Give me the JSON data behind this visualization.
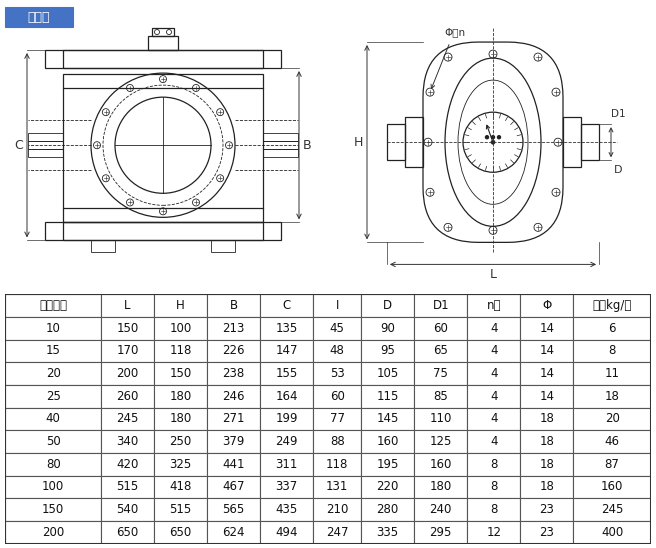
{
  "title": "铸铁型",
  "title_bg": "#4472c4",
  "title_color": "#ffffff",
  "headers": [
    "公称通径",
    "L",
    "H",
    "B",
    "C",
    "I",
    "D",
    "D1",
    "n个",
    "Φ",
    "重量kg/台"
  ],
  "rows": [
    [
      10,
      150,
      100,
      213,
      135,
      45,
      90,
      60,
      4,
      14,
      6
    ],
    [
      15,
      170,
      118,
      226,
      147,
      48,
      95,
      65,
      4,
      14,
      8
    ],
    [
      20,
      200,
      150,
      238,
      155,
      53,
      105,
      75,
      4,
      14,
      11
    ],
    [
      25,
      260,
      180,
      246,
      164,
      60,
      115,
      85,
      4,
      14,
      18
    ],
    [
      40,
      245,
      180,
      271,
      199,
      77,
      145,
      110,
      4,
      18,
      20
    ],
    [
      50,
      340,
      250,
      379,
      249,
      88,
      160,
      125,
      4,
      18,
      46
    ],
    [
      80,
      420,
      325,
      441,
      311,
      118,
      195,
      160,
      8,
      18,
      87
    ],
    [
      100,
      515,
      418,
      467,
      337,
      131,
      220,
      180,
      8,
      18,
      160
    ],
    [
      150,
      540,
      515,
      565,
      435,
      210,
      280,
      240,
      8,
      23,
      245
    ],
    [
      200,
      650,
      650,
      624,
      494,
      247,
      335,
      295,
      12,
      23,
      400
    ]
  ],
  "fig_width": 6.56,
  "fig_height": 5.48,
  "dpi": 100
}
